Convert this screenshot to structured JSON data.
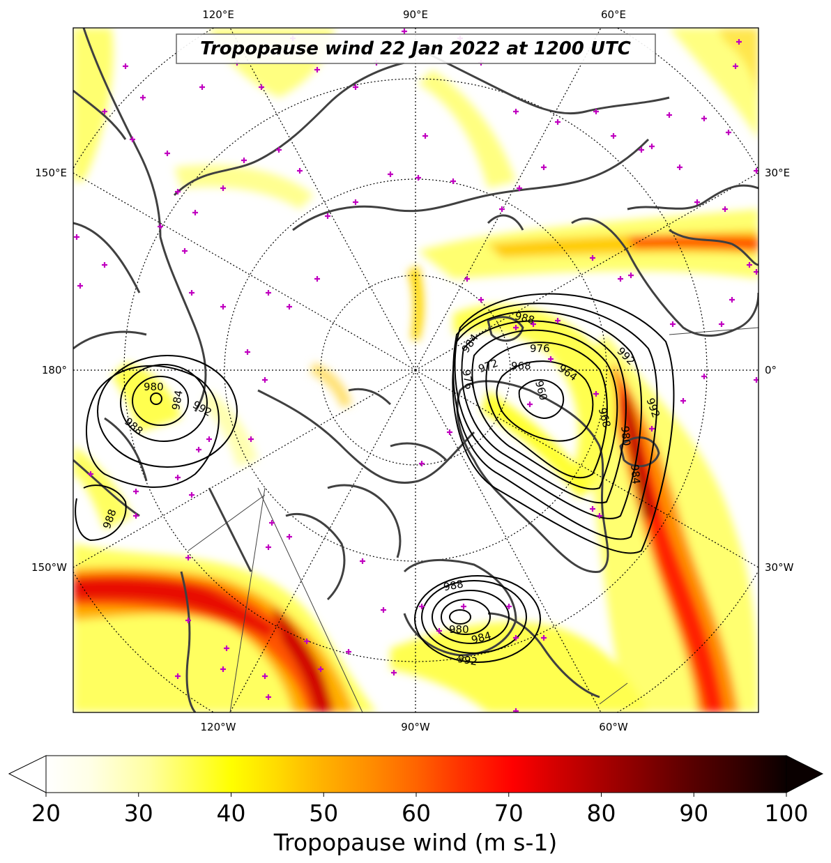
{
  "title": "Tropopause wind 22 Jan 2022 at 1200 UTC",
  "longitude_labels": {
    "top": [
      "120°E",
      "90°E",
      "60°E"
    ],
    "bottom": [
      "120°W",
      "90°W",
      "60°W"
    ],
    "left": [
      "150°E",
      "180°",
      "150°W"
    ],
    "right": [
      "30°E",
      "0°",
      "30°W"
    ]
  },
  "contour_labels": {
    "low_west": [
      "980",
      "984",
      "992",
      "988",
      "988"
    ],
    "low_atlantic": [
      "988",
      "984",
      "976",
      "972",
      "968",
      "964",
      "960",
      "976",
      "968",
      "980",
      "984",
      "992",
      "992"
    ],
    "low_hudson": [
      "988",
      "980",
      "984",
      "992"
    ]
  },
  "colorbar": {
    "ticks": [
      "20",
      "30",
      "40",
      "50",
      "60",
      "70",
      "80",
      "90",
      "100"
    ],
    "label": "Tropopause wind (m s-1)",
    "min": 20,
    "max": 100,
    "extend": "both",
    "colormap": "hot_r",
    "colors": [
      "#ffffff",
      "#ffffe0",
      "#ffff80",
      "#ffff00",
      "#ffd200",
      "#ffa000",
      "#ff6e00",
      "#ff2800",
      "#e60000",
      "#a00000",
      "#600000",
      "#200000",
      "#100000"
    ]
  },
  "colors": {
    "coastline": "#404040",
    "gridline": "#000000",
    "station_marker": "#c000c0",
    "contour": "#000000"
  }
}
